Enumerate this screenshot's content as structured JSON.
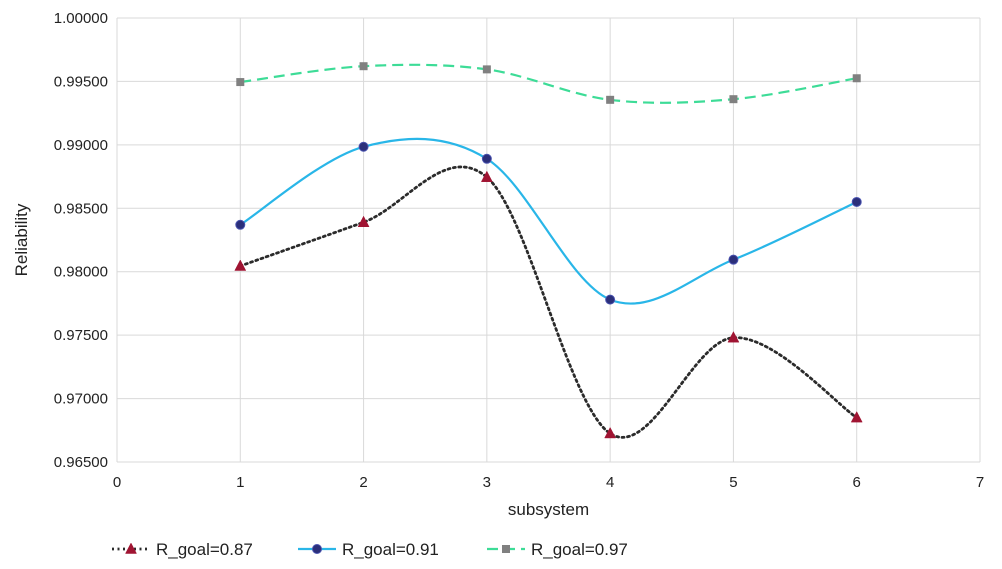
{
  "chart_data": {
    "type": "line",
    "xlabel": "subsystem",
    "ylabel": "Reliability",
    "xlim": [
      0,
      7
    ],
    "ylim": [
      0.965,
      1.0
    ],
    "x_ticks": [
      "0",
      "1",
      "2",
      "3",
      "4",
      "5",
      "6",
      "7"
    ],
    "y_ticks": [
      "0.96500",
      "0.97000",
      "0.97500",
      "0.98000",
      "0.98500",
      "0.99000",
      "0.99500",
      "1.00000"
    ],
    "x_tick_values": [
      0,
      1,
      2,
      3,
      4,
      5,
      6,
      7
    ],
    "y_tick_values": [
      0.965,
      0.97,
      0.975,
      0.98,
      0.985,
      0.99,
      0.995,
      1.0
    ],
    "grid": true,
    "legend_position": "bottom",
    "x": [
      1,
      2,
      3,
      4,
      5,
      6
    ],
    "series": [
      {
        "name": "R_goal=0.87",
        "values": [
          0.98045,
          0.9839,
          0.98745,
          0.96725,
          0.9748,
          0.9685
        ],
        "color": "#2b2b2b",
        "marker_color": "#a01432",
        "marker": "triangle",
        "line_style": "dotted"
      },
      {
        "name": "R_goal=0.91",
        "values": [
          0.9837,
          0.98985,
          0.9889,
          0.9778,
          0.98095,
          0.9855
        ],
        "color": "#29b6e8",
        "marker_color": "#2b2f7a",
        "marker": "circle",
        "line_style": "solid"
      },
      {
        "name": "R_goal=0.97",
        "values": [
          0.99495,
          0.9962,
          0.99595,
          0.99355,
          0.9936,
          0.99525
        ],
        "color": "#3ddc97",
        "marker_color": "#808080",
        "marker": "square",
        "line_style": "dashed"
      }
    ]
  }
}
